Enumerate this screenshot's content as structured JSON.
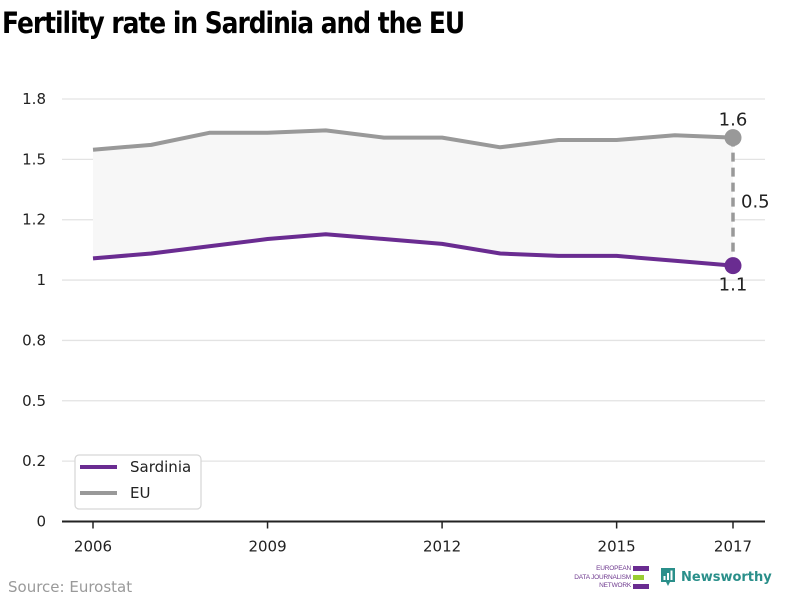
{
  "title": "Fertility rate in Sardinia and the EU",
  "source": "Source: Eurostat",
  "logos": {
    "edjnet_lines": [
      "EUROPEAN",
      "DATA JOURNALISM",
      "NETWORK"
    ],
    "newsworthy": "Newsworthy"
  },
  "colors": {
    "sardinia": "#6a2c91",
    "eu": "#999999",
    "band": "#f7f7f7",
    "grid": "#e3e3e3",
    "axis": "#222222",
    "edjnet_purple": "#6a2c91",
    "edjnet_green": "#9acd32",
    "newsworthy_teal": "#2a8f8a"
  },
  "chart_data": {
    "type": "line",
    "title": "Fertility rate in Sardinia and the EU",
    "xlabel": "",
    "ylabel": "",
    "x": [
      2006,
      2007,
      2008,
      2009,
      2010,
      2011,
      2012,
      2013,
      2014,
      2015,
      2016,
      2017
    ],
    "xlim": [
      2006,
      2017
    ],
    "ylim": [
      0,
      1.75
    ],
    "x_ticks": [
      2006,
      2009,
      2012,
      2015,
      2017
    ],
    "x_tick_labels": [
      "2006",
      "2009",
      "2012",
      "2015",
      "2017"
    ],
    "y_ticks": [
      0,
      0.25,
      0.5,
      0.75,
      1,
      1.25,
      1.5,
      1.75
    ],
    "y_tick_labels": [
      "0",
      "0.2",
      "0.5",
      "0.8",
      "1",
      "1.2",
      "1.5",
      "1.8"
    ],
    "grid": true,
    "series": [
      {
        "name": "Sardinia",
        "color": "#6a2c91",
        "values": [
          1.09,
          1.11,
          1.14,
          1.17,
          1.19,
          1.17,
          1.15,
          1.11,
          1.1,
          1.1,
          1.08,
          1.06
        ]
      },
      {
        "name": "EU",
        "color": "#999999",
        "values": [
          1.54,
          1.56,
          1.61,
          1.61,
          1.62,
          1.59,
          1.59,
          1.55,
          1.58,
          1.58,
          1.6,
          1.59
        ]
      }
    ],
    "shaded_band_between_series": true,
    "annotations": {
      "eu_end_label": "1.6",
      "sardinia_end_label": "1.1",
      "gap_label": "0.5",
      "gap_year": 2017
    },
    "legend": {
      "position": "bottom-left",
      "entries": [
        "Sardinia",
        "EU"
      ]
    }
  }
}
